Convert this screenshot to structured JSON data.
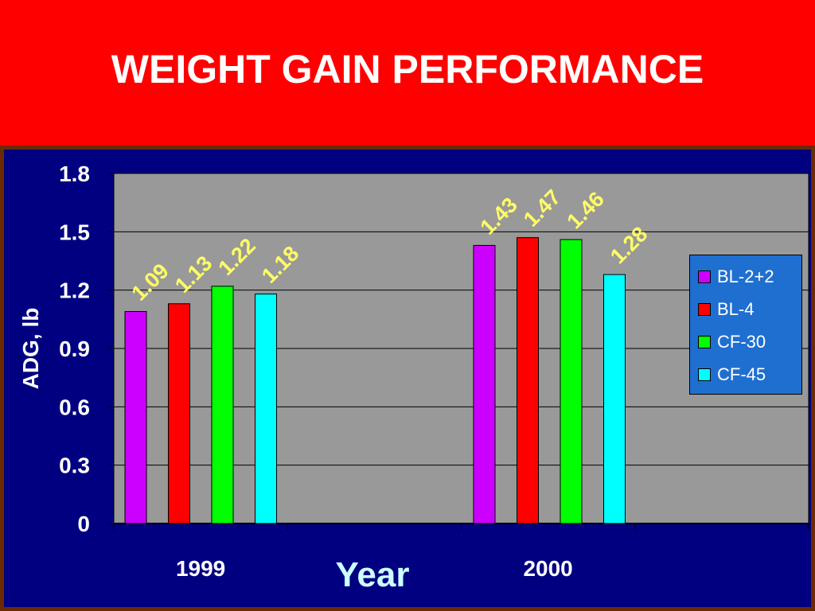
{
  "slide": {
    "title": "WEIGHT GAIN PERFORMANCE"
  },
  "colors": {
    "slide_background": "#ff0000",
    "chart_background": "#000080",
    "plot_background": "#999999",
    "data_label": "#ffff66",
    "axis_text": "#ffffff"
  },
  "chart_data": {
    "type": "bar",
    "title": "",
    "xlabel": "Year",
    "ylabel": "ADG, lb",
    "categories": [
      "1999",
      "2000"
    ],
    "ylim": [
      0,
      1.8
    ],
    "yticks": [
      "0",
      "0.3",
      "0.6",
      "0.9",
      "1.2",
      "1.5",
      "1.8"
    ],
    "grid": true,
    "legend_position": "right",
    "series": [
      {
        "name": "BL-2+2",
        "color": "#cc00ff",
        "values": [
          1.09,
          1.43
        ],
        "labels": [
          "1.09",
          "1.43"
        ]
      },
      {
        "name": "BL-4",
        "color": "#ff0000",
        "values": [
          1.13,
          1.47
        ],
        "labels": [
          "1.13",
          "1.47"
        ]
      },
      {
        "name": "CF-30",
        "color": "#00ff00",
        "values": [
          1.22,
          1.46
        ],
        "labels": [
          "1.22",
          "1.46"
        ]
      },
      {
        "name": "CF-45",
        "color": "#00ffff",
        "values": [
          1.18,
          1.28
        ],
        "labels": [
          "1.18",
          "1.28"
        ]
      }
    ]
  }
}
